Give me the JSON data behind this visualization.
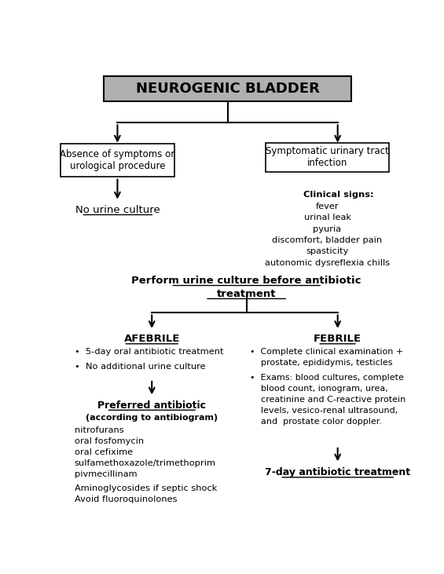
{
  "title": "NEUROGENIC BLADDER",
  "title_bg": "#b0b0b0",
  "title_fontsize": 13,
  "box_left_text": "Absence of symptoms or\nurological procedure",
  "box_right_text": "Symptomatic urinary tract\ninfection",
  "no_urine_text": "No urine culture",
  "clinical_signs_title": "Clinical signs:",
  "clinical_signs_body": "fever\nurinal leak\npyuria\ndiscomfort, bladder pain\nspasticity\nautonomic dysreflexia chills",
  "perform_culture_text": "Perform urine culture before antibiotic\ntreatment",
  "afebrile_text": "AFEBRILE",
  "febrile_text": "FEBRILE",
  "afebrile_bullet1": "•  5-day oral antibiotic treatment",
  "afebrile_bullet2": "•  No additional urine culture",
  "preferred_antibiotic_title": "Preferred antibiotic",
  "preferred_antibiotic_sub": "(according to antibiogram)",
  "preferred_antibiotic_list": "nitrofurans\noral fosfomycin\noral cefixime\nsulfamethoxazole/trimethoprim\npivmecillinam",
  "preferred_antibiotic_extra": "Aminoglycosides if septic shock\nAvoid fluoroquinolones",
  "febrile_bullet1": "•  Complete clinical examination +\n    prostate, epididymis, testicles",
  "febrile_bullet2": "•  Exams: blood cultures, complete\n    blood count, ionogram, urea,\n    creatinine and C-reactive protein\n    levels, vesico-renal ultrasound,\n    and  prostate color doppler.",
  "seven_day_text": "7-day antibiotic treatment",
  "bg_color": "#ffffff",
  "text_color": "#000000"
}
